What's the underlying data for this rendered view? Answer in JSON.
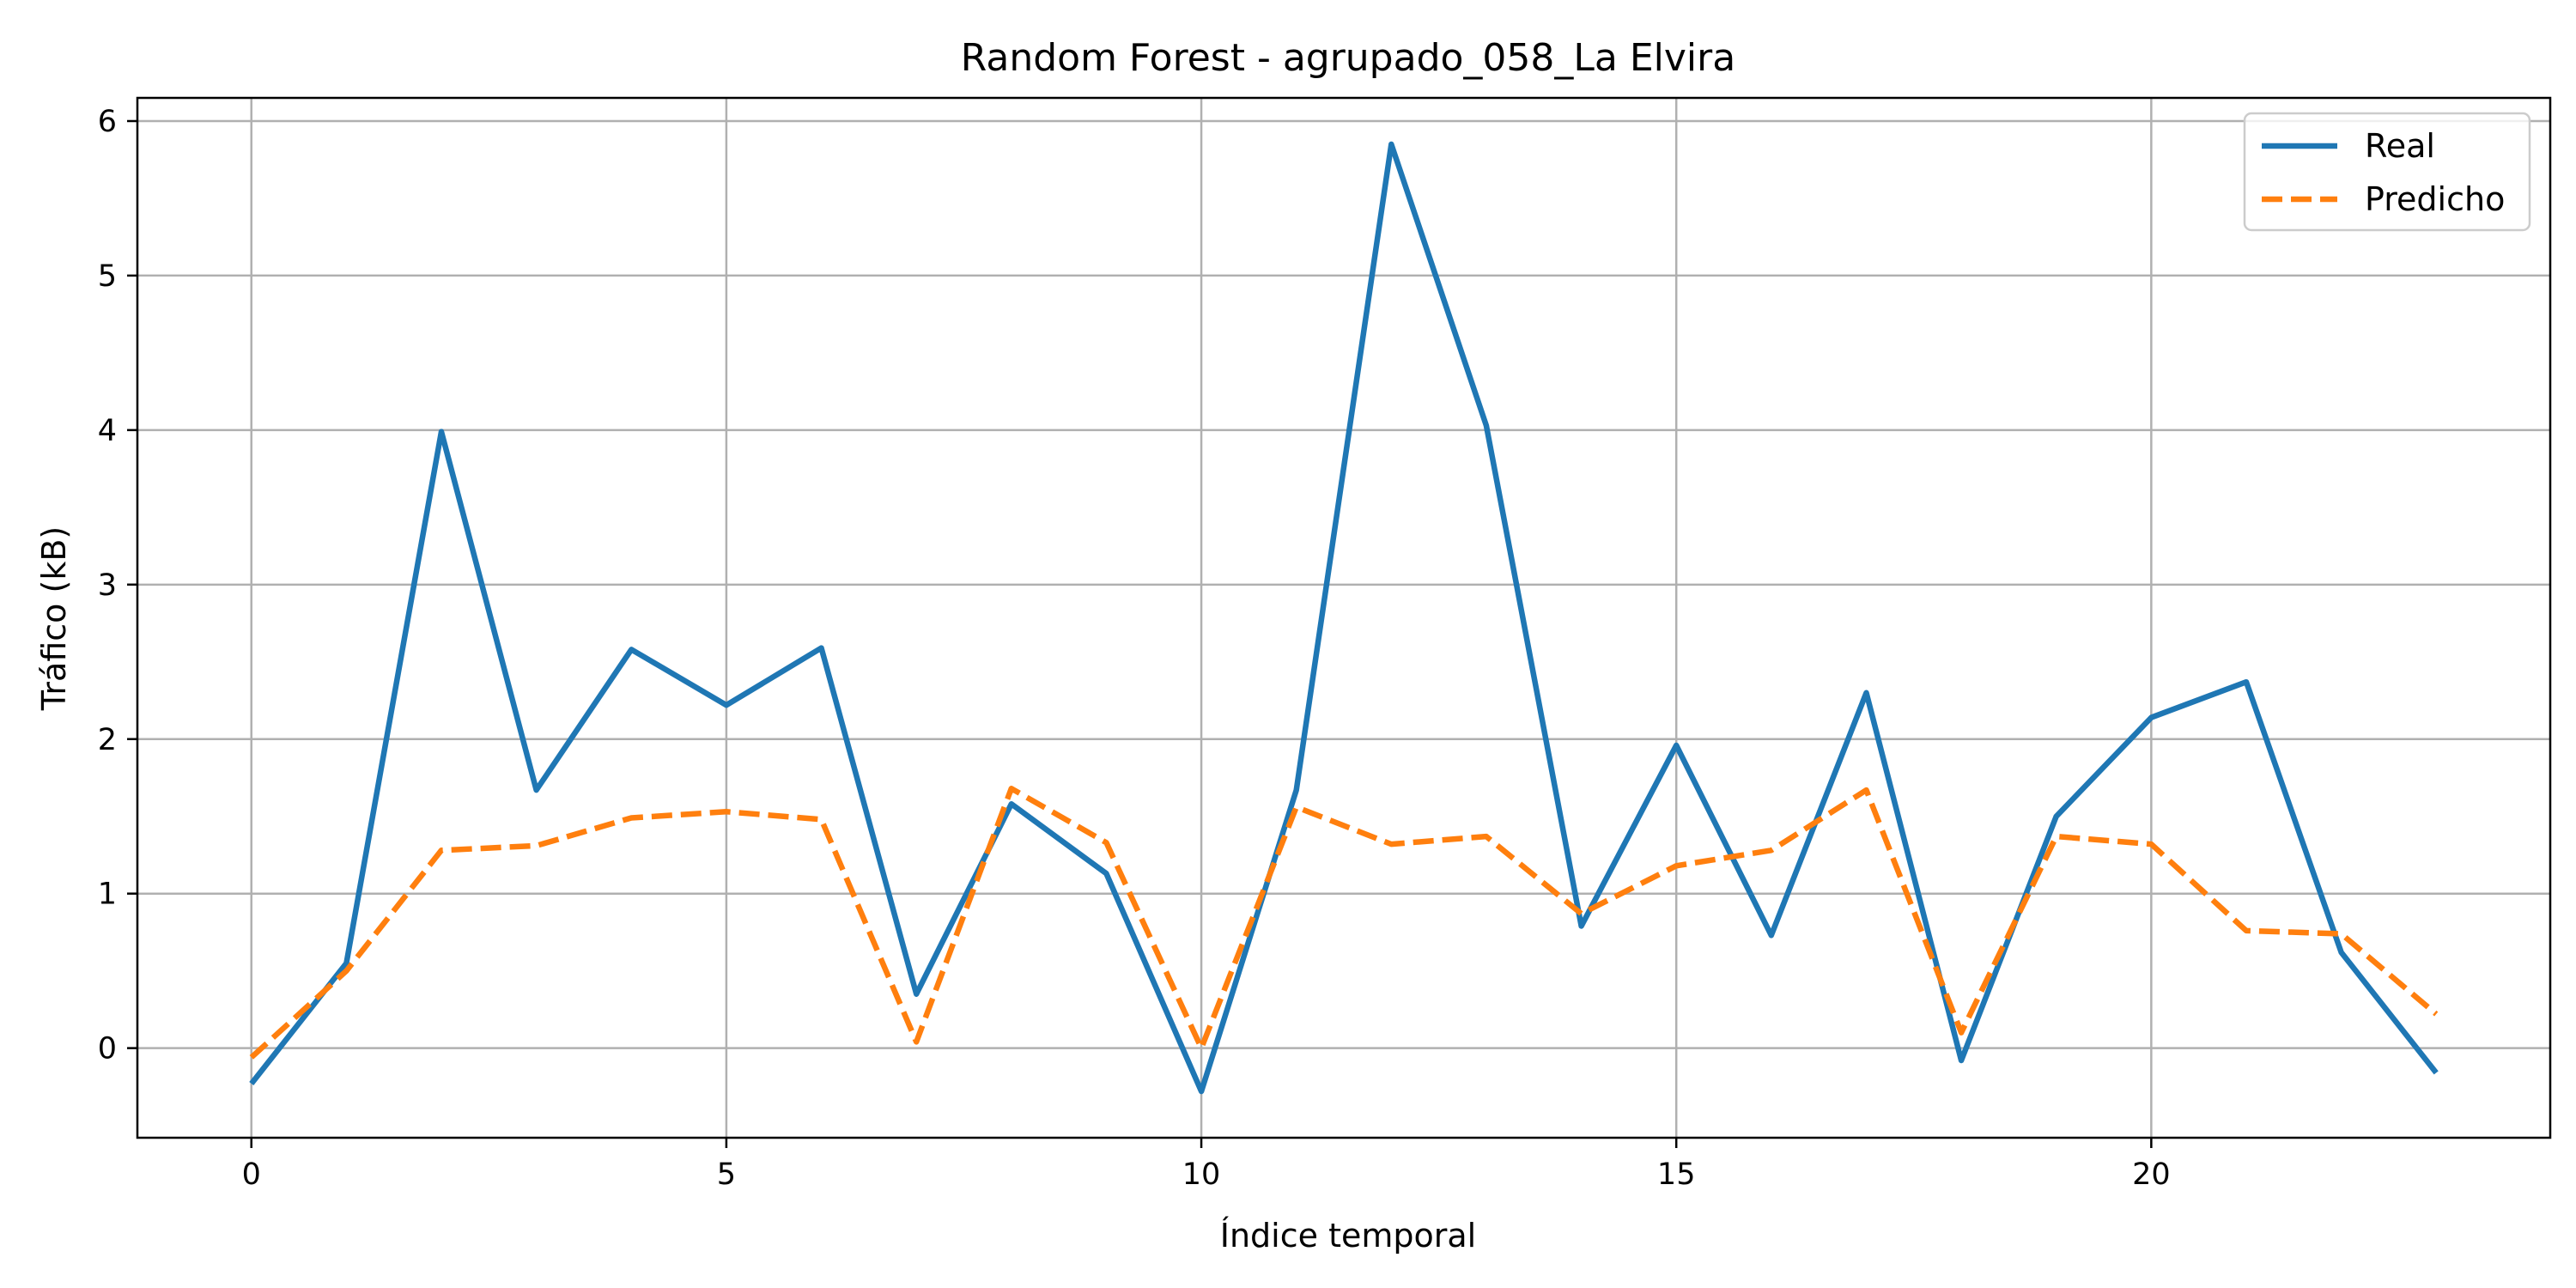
{
  "chart_data": {
    "type": "line",
    "title": "Random Forest - agrupado_058_La Elvira",
    "xlabel": "Índice temporal",
    "ylabel": "Tráfico (kB)",
    "xlim": [
      -1.2,
      24.2
    ],
    "ylim": [
      -0.58,
      6.15
    ],
    "xticks": [
      0,
      5,
      10,
      15,
      20
    ],
    "yticks": [
      0,
      1,
      2,
      3,
      4,
      5,
      6
    ],
    "grid": true,
    "legend_position": "top-right",
    "x": [
      0,
      1,
      2,
      3,
      4,
      5,
      6,
      7,
      8,
      9,
      10,
      11,
      12,
      13,
      14,
      15,
      16,
      17,
      18,
      19,
      20,
      21,
      22,
      23
    ],
    "series": [
      {
        "name": "Real",
        "color": "#1f77b4",
        "style": "solid",
        "values": [
          -0.23,
          0.55,
          3.99,
          1.67,
          2.58,
          2.22,
          2.59,
          0.35,
          1.58,
          1.13,
          -0.28,
          1.67,
          5.85,
          4.03,
          0.79,
          1.96,
          0.73,
          2.3,
          -0.08,
          1.5,
          2.14,
          2.37,
          0.62,
          -0.16
        ]
      },
      {
        "name": "Predicho",
        "color": "#ff7f0e",
        "style": "dashed",
        "values": [
          -0.06,
          0.5,
          1.28,
          1.31,
          1.49,
          1.53,
          1.48,
          0.04,
          1.68,
          1.33,
          0.0,
          1.56,
          1.32,
          1.37,
          0.87,
          1.18,
          1.28,
          1.67,
          0.1,
          1.37,
          1.32,
          0.76,
          0.74,
          0.22
        ]
      }
    ]
  }
}
